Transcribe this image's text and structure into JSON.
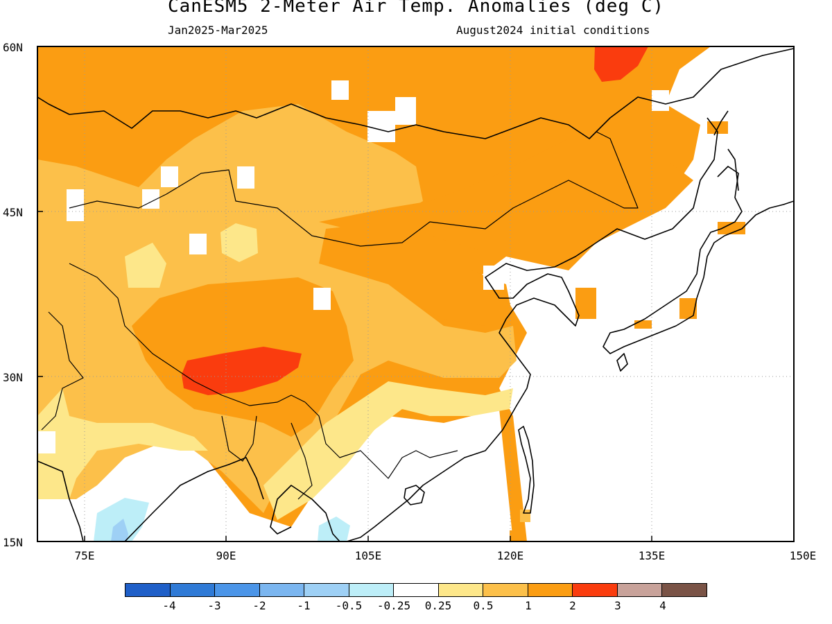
{
  "header": {
    "title": "CanESM5 2-Meter Air Temp. Anomalies (deg C)",
    "period": "Jan2025-Mar2025",
    "init": "August2024 initial conditions"
  },
  "map": {
    "lon_range": [
      70,
      150
    ],
    "lat_range": [
      15,
      60
    ],
    "lat_labels": [
      "60N",
      "45N",
      "30N",
      "15N"
    ],
    "lon_labels": [
      "75E",
      "90E",
      "105E",
      "120E",
      "135E",
      "150E"
    ],
    "land_outline_color": "#000000",
    "grid_lines": "dotted"
  },
  "legend": {
    "labels": [
      "-4",
      "-3",
      "-2",
      "-1",
      "-0.5",
      "-0.25",
      "0.25",
      "0.5",
      "1",
      "2",
      "3",
      "4"
    ],
    "colors": [
      "#1f5fc8",
      "#2f7ad6",
      "#4b95e8",
      "#7bb6f0",
      "#9ed0f5",
      "#bdeef8",
      "#ffffff",
      "#fde78a",
      "#fcc04a",
      "#fb9d12",
      "#fa3c0e",
      "#c8a29a",
      "#7a5346"
    ]
  }
}
